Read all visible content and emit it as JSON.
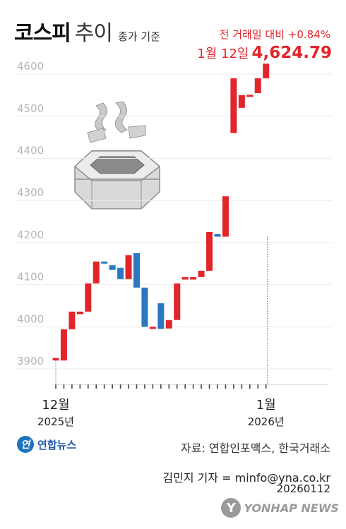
{
  "title": {
    "main": "코스피",
    "sub": "추이",
    "note": "종가 기준"
  },
  "change_label": "전 거래일 대비 +0.84%",
  "latest": {
    "date": "1월 12일",
    "value": "4,624.79"
  },
  "colors": {
    "up": "#e2252b",
    "down": "#2a78c2",
    "flat_up": "#e2252b",
    "axis_text": "#b5b5b5",
    "grid": "#ececec"
  },
  "chart_data": {
    "type": "candlestick",
    "ylim": [
      3880,
      4640
    ],
    "yticks": [
      "3900",
      "4000",
      "4100",
      "4200",
      "4300",
      "4400",
      "4500",
      "4600"
    ],
    "xticks": [
      {
        "index": 0,
        "month": "12월",
        "year": "2025년"
      },
      {
        "index": 26,
        "month": "1월",
        "year": "2026년"
      }
    ],
    "candles": [
      {
        "open": 3920,
        "close": 3926
      },
      {
        "open": 3920,
        "close": 3994
      },
      {
        "open": 3994,
        "close": 4036
      },
      {
        "open": 4030,
        "close": 4036
      },
      {
        "open": 4036,
        "close": 4103
      },
      {
        "open": 4103,
        "close": 4155
      },
      {
        "open": 4155,
        "close": 4150
      },
      {
        "open": 4146,
        "close": 4135
      },
      {
        "open": 4140,
        "close": 4113
      },
      {
        "open": 4113,
        "close": 4170
      },
      {
        "open": 4175,
        "close": 4093
      },
      {
        "open": 4093,
        "close": 4000
      },
      {
        "open": 4000,
        "close": 4000
      },
      {
        "open": 4056,
        "close": 3995
      },
      {
        "open": 3996,
        "close": 4016
      },
      {
        "open": 4016,
        "close": 4103
      },
      {
        "open": 4112,
        "close": 4118
      },
      {
        "open": 4112,
        "close": 4118
      },
      {
        "open": 4118,
        "close": 4133
      },
      {
        "open": 4133,
        "close": 4225
      },
      {
        "open": 4220,
        "close": 4214
      },
      {
        "open": 4214,
        "close": 4310
      },
      {
        "open": 4460,
        "close": 4590
      },
      {
        "open": 4520,
        "close": 4550
      },
      {
        "open": 4550,
        "close": 4551
      },
      {
        "open": 4555,
        "close": 4590
      },
      {
        "open": 4590,
        "close": 4624.79
      }
    ],
    "highlight_index": 21
  },
  "logo": {
    "mark": "연",
    "text": "연합뉴스"
  },
  "source": "자료: 연합인포맥스, 한국거래소",
  "reporter": "김민지 기자 = minfo@yna.co.kr",
  "datecode": "20260112",
  "watermark": {
    "mark": "Y",
    "text": "YONHAP NEWS"
  }
}
